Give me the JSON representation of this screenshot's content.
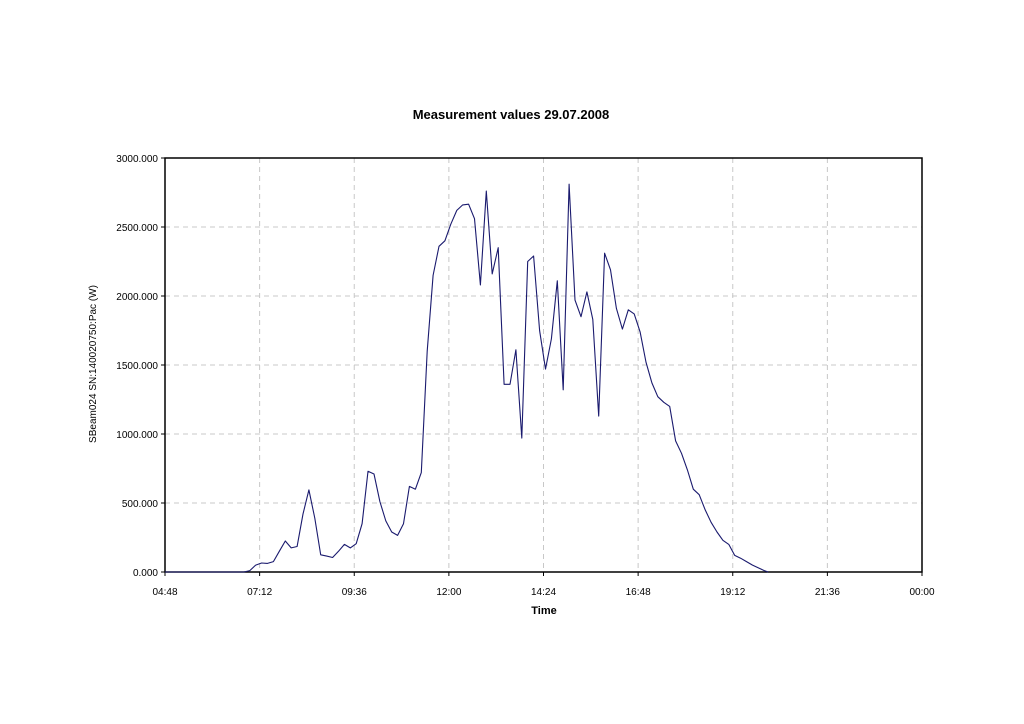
{
  "chart_data": {
    "type": "line",
    "title": "Measurement values 29.07.2008",
    "xlabel": "Time",
    "ylabel": "SBeam024 SN:140020750:Pac (W)",
    "x_unit": "minutes of day",
    "xlim": [
      288,
      1440
    ],
    "ylim": [
      0,
      3000
    ],
    "x_ticks": [
      {
        "value": 288,
        "label": "04:48"
      },
      {
        "value": 432,
        "label": "07:12"
      },
      {
        "value": 576,
        "label": "09:36"
      },
      {
        "value": 720,
        "label": "12:00"
      },
      {
        "value": 864,
        "label": "14:24"
      },
      {
        "value": 1008,
        "label": "16:48"
      },
      {
        "value": 1152,
        "label": "19:12"
      },
      {
        "value": 1296,
        "label": "21:36"
      },
      {
        "value": 1440,
        "label": "00:00"
      }
    ],
    "y_ticks": [
      {
        "value": 0,
        "label": "0.000"
      },
      {
        "value": 500,
        "label": "500.000"
      },
      {
        "value": 1000,
        "label": "1000.000"
      },
      {
        "value": 1500,
        "label": "1500.000"
      },
      {
        "value": 2000,
        "label": "2000.000"
      },
      {
        "value": 2500,
        "label": "2500.000"
      },
      {
        "value": 3000,
        "label": "3000.000"
      }
    ],
    "grid": true,
    "series": [
      {
        "color": "#1a1a6e",
        "points": [
          [
            288,
            0
          ],
          [
            408,
            0
          ],
          [
            417,
            10
          ],
          [
            426,
            50
          ],
          [
            435,
            65
          ],
          [
            444,
            62
          ],
          [
            453,
            75
          ],
          [
            462,
            150
          ],
          [
            471,
            225
          ],
          [
            480,
            175
          ],
          [
            489,
            185
          ],
          [
            498,
            420
          ],
          [
            507,
            595
          ],
          [
            516,
            390
          ],
          [
            525,
            125
          ],
          [
            534,
            115
          ],
          [
            543,
            105
          ],
          [
            552,
            150
          ],
          [
            561,
            200
          ],
          [
            570,
            175
          ],
          [
            579,
            205
          ],
          [
            588,
            350
          ],
          [
            597,
            730
          ],
          [
            606,
            710
          ],
          [
            615,
            510
          ],
          [
            624,
            370
          ],
          [
            633,
            290
          ],
          [
            642,
            265
          ],
          [
            651,
            350
          ],
          [
            660,
            620
          ],
          [
            669,
            600
          ],
          [
            678,
            720
          ],
          [
            687,
            1600
          ],
          [
            696,
            2150
          ],
          [
            705,
            2360
          ],
          [
            714,
            2400
          ],
          [
            723,
            2520
          ],
          [
            732,
            2620
          ],
          [
            741,
            2660
          ],
          [
            750,
            2665
          ],
          [
            759,
            2560
          ],
          [
            768,
            2080
          ],
          [
            777,
            2760
          ],
          [
            786,
            2160
          ],
          [
            795,
            2350
          ],
          [
            804,
            1360
          ],
          [
            813,
            1360
          ],
          [
            822,
            1610
          ],
          [
            831,
            970
          ],
          [
            840,
            2250
          ],
          [
            849,
            2290
          ],
          [
            858,
            1750
          ],
          [
            867,
            1470
          ],
          [
            876,
            1690
          ],
          [
            885,
            2110
          ],
          [
            894,
            1320
          ],
          [
            903,
            2810
          ],
          [
            912,
            1970
          ],
          [
            921,
            1850
          ],
          [
            930,
            2030
          ],
          [
            939,
            1830
          ],
          [
            948,
            1130
          ],
          [
            957,
            2310
          ],
          [
            966,
            2190
          ],
          [
            975,
            1910
          ],
          [
            984,
            1760
          ],
          [
            993,
            1900
          ],
          [
            1002,
            1870
          ],
          [
            1011,
            1740
          ],
          [
            1020,
            1520
          ],
          [
            1029,
            1370
          ],
          [
            1038,
            1270
          ],
          [
            1047,
            1230
          ],
          [
            1056,
            1200
          ],
          [
            1065,
            950
          ],
          [
            1074,
            860
          ],
          [
            1083,
            740
          ],
          [
            1092,
            600
          ],
          [
            1101,
            560
          ],
          [
            1110,
            450
          ],
          [
            1119,
            360
          ],
          [
            1128,
            290
          ],
          [
            1137,
            230
          ],
          [
            1146,
            200
          ],
          [
            1155,
            120
          ],
          [
            1164,
            100
          ],
          [
            1173,
            75
          ],
          [
            1182,
            50
          ],
          [
            1191,
            30
          ],
          [
            1200,
            10
          ],
          [
            1206,
            0
          ]
        ]
      }
    ]
  }
}
